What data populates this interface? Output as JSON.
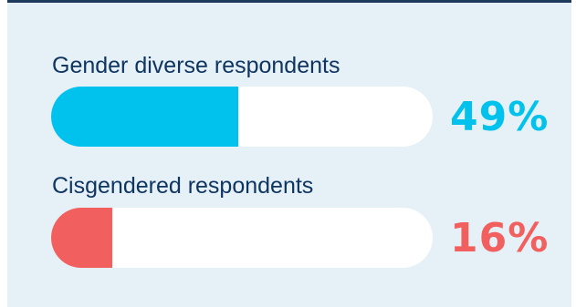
{
  "chart_data": {
    "type": "bar",
    "orientation": "horizontal",
    "categories": [
      "Gender diverse respondents",
      "Cisgendered respondents"
    ],
    "values": [
      49,
      16
    ],
    "value_labels": [
      "49%",
      "16%"
    ],
    "colors": [
      "#00c2ec",
      "#f25f5f"
    ],
    "xlim": [
      0,
      100
    ]
  }
}
